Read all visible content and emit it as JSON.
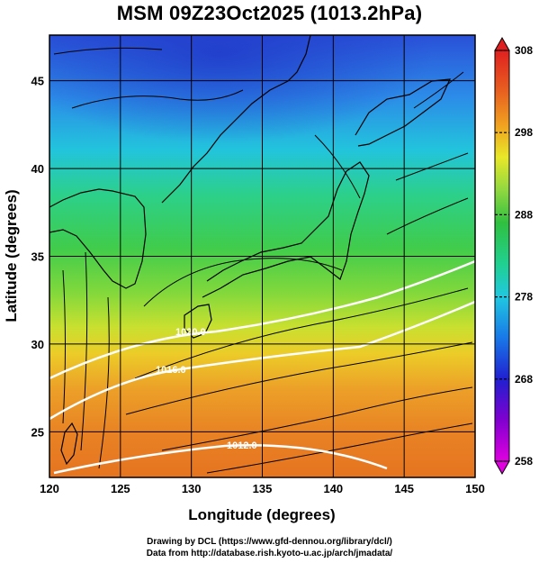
{
  "title": "MSM 09Z23Oct2025 (1013.2hPa)",
  "chart_data": {
    "type": "heatmap",
    "title": "MSM 09Z23Oct2025 (1013.2hPa)",
    "xlabel": "Longitude (degrees)",
    "ylabel": "Latitude  (degrees)",
    "xlim": [
      120,
      150
    ],
    "ylim": [
      22.4,
      47.6
    ],
    "x_ticks": [
      "120",
      "125",
      "130",
      "135",
      "140",
      "145",
      "150"
    ],
    "y_ticks": [
      "25",
      "30",
      "35",
      "40",
      "45"
    ],
    "x_tick_values": [
      120,
      125,
      130,
      135,
      140,
      145,
      150
    ],
    "y_tick_values": [
      25,
      30,
      35,
      40,
      45
    ],
    "grid": true,
    "grid_step_degrees": 5,
    "colorbar": {
      "min": 258,
      "max": 308,
      "tick_labels": [
        "308",
        "298",
        "288",
        "278",
        "268",
        "258"
      ],
      "tick_values": [
        308,
        298,
        288,
        278,
        268,
        258
      ],
      "colors": [
        "#e000e0",
        "#8000d0",
        "#2020d0",
        "#1878e8",
        "#20c8e0",
        "#20d090",
        "#30c040",
        "#90d840",
        "#e8e828",
        "#f0a020",
        "#e86020",
        "#e02020"
      ]
    },
    "contour_labels": [
      {
        "text": "1020.0",
        "value": 1020.0
      },
      {
        "text": "1016.0",
        "value": 1016.0
      },
      {
        "text": "1012.0",
        "value": 1012.0
      }
    ],
    "field": "surface temperature with streamlines and pressure contours"
  },
  "credits": {
    "line1": "Drawing by DCL (https://www.gfd-dennou.org/library/dcl/)",
    "line2": "Data from http://database.rish.kyoto-u.ac.jp/arch/jmadata/"
  }
}
